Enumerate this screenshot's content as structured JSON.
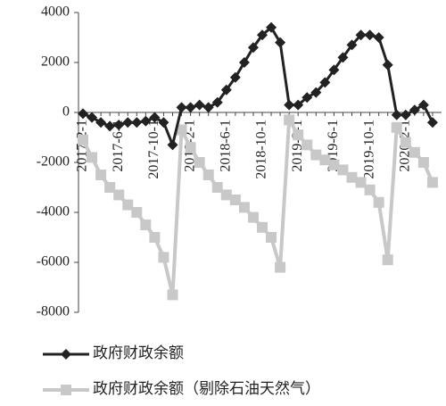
{
  "chart_data": {
    "type": "line",
    "categories": [
      "2017-2-1",
      null,
      null,
      null,
      "2017-6-1",
      null,
      null,
      null,
      "2017-10-1",
      null,
      null,
      null,
      "2018-2-1",
      null,
      null,
      null,
      "2018-6-1",
      null,
      null,
      null,
      "2018-10-1",
      null,
      null,
      null,
      "2019-2-1",
      null,
      null,
      null,
      "2019-6-1",
      null,
      null,
      null,
      "2019-10-1",
      null,
      null,
      null,
      "2020-2-1",
      null,
      null,
      null
    ],
    "series": [
      {
        "name": "政府财政余额",
        "color": "#222222",
        "marker": "diamond",
        "values": [
          -50,
          -200,
          -400,
          -550,
          -500,
          -400,
          -400,
          -350,
          -200,
          -400,
          -1300,
          200,
          200,
          300,
          200,
          400,
          900,
          1400,
          2000,
          2600,
          3100,
          3400,
          2800,
          300,
          300,
          600,
          800,
          1200,
          1700,
          2200,
          2700,
          3100,
          3100,
          3000,
          1900,
          -100,
          -100,
          100,
          300,
          -400
        ]
      },
      {
        "name": "政府财政余额（剔除石油天然气）",
        "color": "#c8c8c8",
        "marker": "square",
        "values": [
          -1100,
          -1800,
          -2500,
          -3000,
          -3300,
          -3700,
          -4000,
          -4500,
          -5000,
          -5800,
          -7300,
          -700,
          -1400,
          -2000,
          -2500,
          -3000,
          -3300,
          -3500,
          -3800,
          -4200,
          -4600,
          -5000,
          -6200,
          -300,
          -900,
          -1300,
          -1700,
          -1900,
          -2100,
          -2300,
          -2600,
          -2800,
          -3100,
          -3600,
          -5900,
          -600,
          -1200,
          -1600,
          -2000,
          -2800
        ]
      }
    ],
    "ylim": [
      -8000,
      4000
    ],
    "yticks": [
      -8000,
      -6000,
      -4000,
      -2000,
      0,
      2000,
      4000
    ]
  }
}
